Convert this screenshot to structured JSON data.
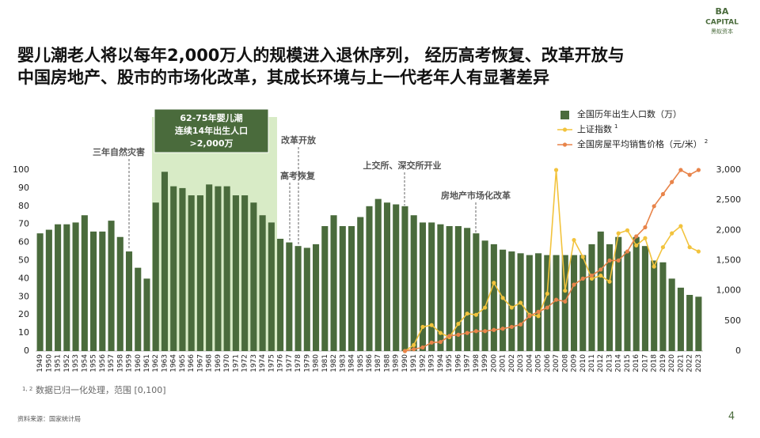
{
  "logo": {
    "line1": "BA",
    "line2": "CAPITAL",
    "line3": "黑蚁资本"
  },
  "title_lines": [
    "婴儿潮老人将以每年2,000万人的规模进入退休序列， 经历高考恢复、改革开放与",
    "中国房地产、股市的市场化改革，其成长环境与上一代老年人有显著差异"
  ],
  "chart_data": {
    "type": "bar_line",
    "categories": [
      "1949",
      "1950",
      "1951",
      "1952",
      "1953",
      "1954",
      "1955",
      "1956",
      "1957",
      "1958",
      "1959",
      "1960",
      "1961",
      "1962",
      "1963",
      "1964",
      "1965",
      "1966",
      "1967",
      "1968",
      "1969",
      "1970",
      "1971",
      "1972",
      "1973",
      "1974",
      "1975",
      "1976",
      "1977",
      "1978",
      "1979",
      "1980",
      "1981",
      "1982",
      "1983",
      "1984",
      "1985",
      "1986",
      "1987",
      "1988",
      "1989",
      "1990",
      "1991",
      "1992",
      "1993",
      "1994",
      "1995",
      "1996",
      "1997",
      "1998",
      "1999",
      "2000",
      "2001",
      "2002",
      "2003",
      "2004",
      "2005",
      "2006",
      "2007",
      "2008",
      "2009",
      "2010",
      "2011",
      "2012",
      "2013",
      "2014",
      "2015",
      "2016",
      "2017",
      "2018",
      "2019",
      "2020",
      "2021",
      "2022",
      "2023"
    ],
    "series": [
      {
        "name": "全国历年出生人口数（万）",
        "color": "#4a6b3c",
        "kind": "bar",
        "values": [
          65,
          67,
          70,
          70,
          71,
          75,
          66,
          66,
          72,
          63,
          55,
          46,
          40,
          82,
          99,
          91,
          90,
          86,
          86,
          92,
          91,
          91,
          86,
          86,
          82,
          75,
          71,
          62,
          60,
          58,
          57,
          59,
          69,
          75,
          69,
          69,
          74,
          80,
          84,
          82,
          81,
          80,
          75,
          71,
          71,
          70,
          69,
          69,
          68,
          65,
          61,
          59,
          56,
          55,
          54,
          53,
          54,
          53,
          53,
          53,
          53,
          53,
          59,
          66,
          59,
          63,
          55,
          63,
          58,
          50,
          49,
          40,
          35,
          31,
          30
        ]
      },
      {
        "name": "上证指数",
        "note_mark": "1",
        "color": "#f2c33d",
        "kind": "line",
        "axis": "y2",
        "values": [
          null,
          null,
          null,
          null,
          null,
          null,
          null,
          null,
          null,
          null,
          null,
          null,
          null,
          null,
          null,
          null,
          null,
          null,
          null,
          null,
          null,
          null,
          null,
          null,
          null,
          null,
          null,
          null,
          null,
          null,
          null,
          null,
          null,
          null,
          null,
          null,
          null,
          null,
          null,
          null,
          null,
          0,
          100,
          400,
          430,
          300,
          230,
          450,
          620,
          600,
          720,
          1130,
          880,
          720,
          800,
          600,
          580,
          950,
          3000,
          1000,
          1840,
          1560,
          1200,
          1250,
          1150,
          1950,
          2000,
          1750,
          1870,
          1400,
          1720,
          1950,
          2070,
          1720,
          1650
        ]
      },
      {
        "name": "全国房屋平均销售价格（元/米）",
        "note_mark": "2",
        "color": "#e8844a",
        "kind": "line",
        "axis": "y2",
        "values": [
          null,
          null,
          null,
          null,
          null,
          null,
          null,
          null,
          null,
          null,
          null,
          null,
          null,
          null,
          null,
          null,
          null,
          null,
          null,
          null,
          null,
          null,
          null,
          null,
          null,
          null,
          null,
          null,
          null,
          null,
          null,
          null,
          null,
          null,
          null,
          null,
          null,
          null,
          null,
          null,
          null,
          0,
          30,
          60,
          140,
          150,
          250,
          270,
          300,
          330,
          330,
          350,
          370,
          400,
          440,
          580,
          650,
          720,
          850,
          820,
          1100,
          1200,
          1250,
          1350,
          1500,
          1500,
          1650,
          1900,
          2050,
          2400,
          2600,
          2800,
          3000,
          2920,
          3000
        ]
      }
    ],
    "ylim": [
      0,
      100
    ],
    "yticks": [
      0,
      10,
      20,
      30,
      40,
      50,
      60,
      70,
      80,
      90,
      100
    ],
    "y2lim": [
      0,
      3000
    ],
    "y2ticks": [
      0,
      500,
      {
        "value": 1000,
        "label": "1,000"
      },
      {
        "value": 1500,
        "label": "1,500"
      },
      {
        "value": 2000,
        "label": "2,000"
      },
      {
        "value": 2500,
        "label": "2,500"
      },
      {
        "value": 3000,
        "label": "3,000"
      }
    ],
    "annotations": {
      "famine": "三年自然灾害",
      "boom": [
        "62-75年婴儿潮",
        "连续14年出生人口",
        ">2,000万"
      ],
      "reform": "改革开放",
      "exam": "高考恢复",
      "exchange": "上交所、深交所开业",
      "housing": "房地产市场化改革"
    },
    "footnote": {
      "marks": "1, 2",
      "text": "数据已归一化处理，范围 [0,100]"
    }
  },
  "source": "资料来源：国家统计局",
  "page_number": "4"
}
